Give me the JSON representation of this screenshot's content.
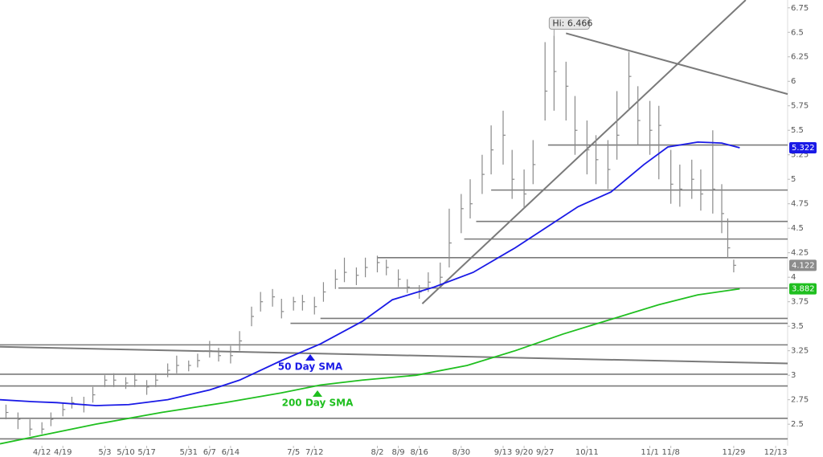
{
  "chart_data": {
    "type": "ohlc",
    "color": "#8a8a8a",
    "xlim": [
      -3,
      260
    ],
    "ylim": [
      2.28,
      6.83
    ],
    "xticks": [
      {
        "value": 11,
        "label": "4/12"
      },
      {
        "value": 18,
        "label": "4/19"
      },
      {
        "value": 32,
        "label": "5/3"
      },
      {
        "value": 39,
        "label": "5/10"
      },
      {
        "value": 46,
        "label": "5/17"
      },
      {
        "value": 60,
        "label": "5/31"
      },
      {
        "value": 67,
        "label": "6/7"
      },
      {
        "value": 74,
        "label": "6/14"
      },
      {
        "value": 95,
        "label": "7/5"
      },
      {
        "value": 102,
        "label": "7/12"
      },
      {
        "value": 123,
        "label": "8/2"
      },
      {
        "value": 130,
        "label": "8/9"
      },
      {
        "value": 137,
        "label": "8/16"
      },
      {
        "value": 151,
        "label": "8/30"
      },
      {
        "value": 165,
        "label": "9/13"
      },
      {
        "value": 172,
        "label": "9/20"
      },
      {
        "value": 179,
        "label": "9/27"
      },
      {
        "value": 193,
        "label": "10/11"
      },
      {
        "value": 214,
        "label": "11/1"
      },
      {
        "value": 221,
        "label": "11/8"
      },
      {
        "value": 242,
        "label": "11/29"
      },
      {
        "value": 256,
        "label": "12/13"
      }
    ],
    "yticks": [
      2.5,
      2.75,
      3,
      3.25,
      3.5,
      3.75,
      4,
      4.25,
      4.5,
      4.75,
      5,
      5.25,
      5.5,
      5.75,
      6,
      6.25,
      6.5,
      6.75
    ],
    "x": [
      -1,
      3,
      7,
      11,
      14,
      18,
      21,
      25,
      28,
      32,
      35,
      39,
      42,
      46,
      49,
      53,
      56,
      60,
      63,
      67,
      70,
      74,
      77,
      81,
      84,
      88,
      91,
      95,
      98,
      102,
      105,
      109,
      112,
      116,
      119,
      123,
      126,
      130,
      133,
      137,
      140,
      144,
      147,
      151,
      154,
      158,
      161,
      165,
      168,
      172,
      175,
      179,
      182,
      186,
      189,
      193,
      196,
      200,
      203,
      207,
      210,
      214,
      217,
      221,
      224,
      228,
      231,
      235,
      238,
      240,
      242
    ],
    "high": [
      2.7,
      2.62,
      2.55,
      2.52,
      2.62,
      2.72,
      2.78,
      2.78,
      2.88,
      3.0,
      3.02,
      2.98,
      3.02,
      2.95,
      3.02,
      3.12,
      3.2,
      3.15,
      3.22,
      3.35,
      3.28,
      3.3,
      3.45,
      3.7,
      3.85,
      3.88,
      3.78,
      3.8,
      3.82,
      3.8,
      3.95,
      4.08,
      4.2,
      4.1,
      4.2,
      4.22,
      4.18,
      4.08,
      3.98,
      3.92,
      4.05,
      4.15,
      4.7,
      4.85,
      5.0,
      5.25,
      5.55,
      5.7,
      5.3,
      5.1,
      5.4,
      6.4,
      6.466,
      6.2,
      5.85,
      5.6,
      5.45,
      5.4,
      5.9,
      6.3,
      5.95,
      5.8,
      5.75,
      5.3,
      5.15,
      5.2,
      5.1,
      5.5,
      4.95,
      4.6,
      4.18
    ],
    "low": [
      2.55,
      2.45,
      2.38,
      2.4,
      2.48,
      2.58,
      2.66,
      2.62,
      2.72,
      2.88,
      2.88,
      2.86,
      2.88,
      2.8,
      2.88,
      2.98,
      3.02,
      3.04,
      3.08,
      3.18,
      3.14,
      3.12,
      3.25,
      3.5,
      3.65,
      3.7,
      3.58,
      3.66,
      3.66,
      3.62,
      3.75,
      3.88,
      3.95,
      3.92,
      4.0,
      4.05,
      4.02,
      3.9,
      3.84,
      3.78,
      3.85,
      3.92,
      4.1,
      4.45,
      4.6,
      4.85,
      5.05,
      5.15,
      4.8,
      4.7,
      4.95,
      5.6,
      5.7,
      5.6,
      5.25,
      5.05,
      4.95,
      4.9,
      5.2,
      5.7,
      5.35,
      5.25,
      5.0,
      4.75,
      4.72,
      4.8,
      4.68,
      4.65,
      4.45,
      4.2,
      4.05
    ],
    "close": [
      2.62,
      2.55,
      2.45,
      2.45,
      2.55,
      2.65,
      2.72,
      2.7,
      2.8,
      2.95,
      2.95,
      2.92,
      2.95,
      2.88,
      2.95,
      3.05,
      3.1,
      3.1,
      3.15,
      3.25,
      3.2,
      3.2,
      3.35,
      3.6,
      3.75,
      3.8,
      3.65,
      3.75,
      3.75,
      3.7,
      3.85,
      3.98,
      4.05,
      4.02,
      4.1,
      4.15,
      4.1,
      3.98,
      3.9,
      3.85,
      3.95,
      4.0,
      4.35,
      4.7,
      4.75,
      5.05,
      5.3,
      5.45,
      5.0,
      4.85,
      5.15,
      5.9,
      6.1,
      5.95,
      5.5,
      5.3,
      5.2,
      5.1,
      5.45,
      6.05,
      5.6,
      5.5,
      5.55,
      4.95,
      4.9,
      5.0,
      4.85,
      4.9,
      4.65,
      4.3,
      4.122
    ],
    "close_tag_color": "#8c8c8c",
    "hi_label": "Hi: 6.466",
    "series": [
      {
        "name": "50 Day SMA",
        "color": "#1a1ae6",
        "x": [
          -3,
          8,
          16,
          29,
          40,
          53,
          67,
          77,
          91,
          104,
          118,
          128,
          142,
          155,
          169,
          179,
          190,
          201,
          212,
          220,
          230,
          238,
          244
        ],
        "values": [
          2.75,
          2.73,
          2.72,
          2.69,
          2.7,
          2.75,
          2.85,
          2.95,
          3.15,
          3.32,
          3.55,
          3.77,
          3.9,
          4.05,
          4.3,
          4.5,
          4.72,
          4.87,
          5.15,
          5.33,
          5.38,
          5.37,
          5.322
        ]
      },
      {
        "name": "200 Day SMA",
        "color": "#1fbf1f",
        "x": [
          -3,
          13,
          29,
          51,
          72,
          91,
          104,
          118,
          136,
          153,
          169,
          185,
          201,
          217,
          230,
          244
        ],
        "values": [
          2.3,
          2.4,
          2.5,
          2.62,
          2.72,
          2.82,
          2.9,
          2.95,
          3.0,
          3.1,
          3.25,
          3.42,
          3.57,
          3.72,
          3.82,
          3.882
        ]
      }
    ],
    "hlines": [
      {
        "y": 2.35,
        "x0": -3
      },
      {
        "y": 2.56,
        "x0": -3
      },
      {
        "y": 2.89,
        "x0": -3
      },
      {
        "y": 3.01,
        "x0": -3
      },
      {
        "y": 3.31,
        "x0": -3
      },
      {
        "y": 3.53,
        "x0": 94
      },
      {
        "y": 3.58,
        "x0": 104
      },
      {
        "y": 3.89,
        "x0": 110
      },
      {
        "y": 4.2,
        "x0": 123
      },
      {
        "y": 4.39,
        "x0": 152
      },
      {
        "y": 4.57,
        "x0": 156
      },
      {
        "y": 4.89,
        "x0": 161
      },
      {
        "y": 5.35,
        "x0": 180
      }
    ],
    "trendlines": [
      {
        "x": [
          138,
          246
        ],
        "y": [
          3.73,
          6.83
        ]
      },
      {
        "x": [
          186,
          260
        ],
        "y": [
          6.49,
          5.87
        ]
      },
      {
        "x": [
          -3,
          260
        ],
        "y": [
          3.29,
          3.12
        ]
      }
    ]
  }
}
